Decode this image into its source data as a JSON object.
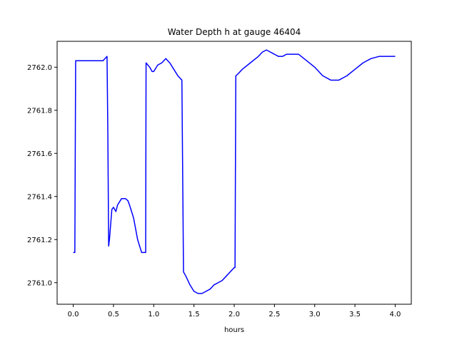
{
  "chart_data": {
    "type": "line",
    "title": "Water Depth h at gauge 46404",
    "xlabel": "hours",
    "ylabel": "",
    "xlim": [
      -0.2,
      4.2
    ],
    "ylim": [
      2760.9,
      2762.12
    ],
    "xticks": [
      0.0,
      0.5,
      1.0,
      1.5,
      2.0,
      2.5,
      3.0,
      3.5,
      4.0
    ],
    "xtick_labels": [
      "0.0",
      "0.5",
      "1.0",
      "1.5",
      "2.0",
      "2.5",
      "3.0",
      "3.5",
      "4.0"
    ],
    "yticks": [
      2761.0,
      2761.2,
      2761.4,
      2761.6,
      2761.8,
      2762.0
    ],
    "ytick_labels": [
      "2761.0",
      "2761.2",
      "2761.4",
      "2761.6",
      "2761.8",
      "2762.0"
    ],
    "grid": false,
    "series": [
      {
        "color": "#0000ff",
        "x": [
          0.0,
          0.02,
          0.03,
          0.05,
          0.1,
          0.2,
          0.3,
          0.37,
          0.42,
          0.43,
          0.44,
          0.45,
          0.48,
          0.5,
          0.53,
          0.55,
          0.6,
          0.63,
          0.65,
          0.68,
          0.7,
          0.75,
          0.8,
          0.85,
          0.9,
          0.905,
          0.95,
          0.98,
          1.0,
          1.05,
          1.1,
          1.15,
          1.2,
          1.25,
          1.3,
          1.35,
          1.37,
          1.4,
          1.45,
          1.5,
          1.55,
          1.6,
          1.65,
          1.7,
          1.75,
          1.8,
          1.85,
          1.9,
          1.95,
          2.0,
          2.01,
          2.02,
          2.05,
          2.1,
          2.2,
          2.3,
          2.35,
          2.4,
          2.45,
          2.5,
          2.55,
          2.6,
          2.65,
          2.7,
          2.8,
          2.9,
          3.0,
          3.1,
          3.2,
          3.3,
          3.4,
          3.5,
          3.6,
          3.7,
          3.8,
          3.9,
          4.0
        ],
        "y": [
          2761.14,
          2761.14,
          2762.03,
          2762.03,
          2762.03,
          2762.03,
          2762.03,
          2762.03,
          2762.05,
          2761.7,
          2761.17,
          2761.2,
          2761.34,
          2761.35,
          2761.33,
          2761.36,
          2761.39,
          2761.39,
          2761.39,
          2761.38,
          2761.36,
          2761.3,
          2761.2,
          2761.14,
          2761.14,
          2762.02,
          2762.0,
          2761.98,
          2761.98,
          2762.01,
          2762.02,
          2762.04,
          2762.02,
          2761.99,
          2761.96,
          2761.94,
          2761.05,
          2761.03,
          2760.99,
          2760.96,
          2760.95,
          2760.95,
          2760.96,
          2760.97,
          2760.99,
          2761.0,
          2761.01,
          2761.03,
          2761.05,
          2761.07,
          2761.07,
          2761.96,
          2761.97,
          2761.99,
          2762.02,
          2762.05,
          2762.07,
          2762.08,
          2762.07,
          2762.06,
          2762.05,
          2762.05,
          2762.06,
          2762.06,
          2762.06,
          2762.03,
          2762.0,
          2761.96,
          2761.94,
          2761.94,
          2761.96,
          2761.99,
          2762.02,
          2762.04,
          2762.05,
          2762.05,
          2762.05
        ]
      }
    ]
  }
}
